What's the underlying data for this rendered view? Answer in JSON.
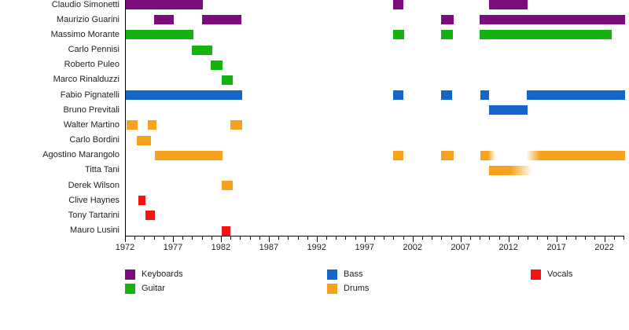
{
  "chart_data": {
    "type": "timeline",
    "description": "Band members timeline (instrument membership periods by year)",
    "x_axis": {
      "year_start": 1972,
      "year_end": 2024,
      "major_tick_interval": 5,
      "minor_tick_interval": 1,
      "year_labels": [
        "1972",
        "1977",
        "1982",
        "1987",
        "1992",
        "1997",
        "2002",
        "2007",
        "2012",
        "2017",
        "2022"
      ]
    },
    "instrument_colors": {
      "Keyboards": "#7b0c7b",
      "Guitar": "#14b30e",
      "Bass": "#1467c8",
      "Drums": "#f7a21c",
      "Vocals": "#f51210"
    },
    "legend": [
      {
        "label": "Keyboards",
        "instrument": "Keyboards",
        "col": 0,
        "row": 0
      },
      {
        "label": "Guitar",
        "instrument": "Guitar",
        "col": 0,
        "row": 1
      },
      {
        "label": "Bass",
        "instrument": "Bass",
        "col": 1,
        "row": 0
      },
      {
        "label": "Drums",
        "instrument": "Drums",
        "col": 1,
        "row": 1
      },
      {
        "label": "Vocals",
        "instrument": "Vocals",
        "col": 2,
        "row": 0
      }
    ],
    "members": [
      {
        "name": "Claudio Simonetti",
        "instrument": "Keyboards",
        "periods": [
          [
            1972,
            1980.1
          ],
          [
            2000,
            2001
          ],
          [
            2010,
            2014
          ]
        ]
      },
      {
        "name": "Maurizio Guarini",
        "instrument": "Keyboards",
        "periods": [
          [
            1975,
            1977.1
          ],
          [
            1980,
            1984.1
          ],
          [
            2005,
            2006.3
          ],
          [
            2009,
            2024.2
          ]
        ]
      },
      {
        "name": "Massimo Morante",
        "instrument": "Guitar",
        "periods": [
          [
            1972,
            1979.1
          ],
          [
            2000,
            2001.1
          ],
          [
            2005,
            2006.2
          ],
          [
            2009,
            2022.8
          ]
        ]
      },
      {
        "name": "Carlo Pennisi",
        "instrument": "Guitar",
        "periods": [
          [
            1979,
            1981.1
          ]
        ]
      },
      {
        "name": "Roberto Puleo",
        "instrument": "Guitar",
        "periods": [
          [
            1980.9,
            1982.2
          ]
        ]
      },
      {
        "name": "Marco Rinalduzzi",
        "instrument": "Guitar",
        "periods": [
          [
            1982.1,
            1983.2
          ]
        ]
      },
      {
        "name": "Fabio Pignatelli",
        "instrument": "Bass",
        "periods": [
          [
            1972,
            1984.2
          ],
          [
            2000,
            2001
          ],
          [
            2005,
            2006.1
          ],
          [
            2009.1,
            2010
          ],
          [
            2013.9,
            2024.2
          ]
        ]
      },
      {
        "name": "Bruno Previtali",
        "instrument": "Bass",
        "periods": [
          [
            2010,
            2014
          ]
        ]
      },
      {
        "name": "Walter Martino",
        "instrument": "Drums",
        "periods": [
          [
            1972.2,
            1973.3
          ],
          [
            1974.4,
            1975.3
          ],
          [
            1983,
            1984.2
          ]
        ]
      },
      {
        "name": "Carlo Bordini",
        "instrument": "Drums",
        "periods": [
          [
            1973.2,
            1974.7
          ]
        ]
      },
      {
        "name": "Agostino Marangolo",
        "instrument": "Drums",
        "periods": [
          [
            1975.1,
            1982.2
          ],
          [
            2000,
            2001
          ],
          [
            2005,
            2006.3
          ],
          [
            2009.1,
            2010.6,
            "fade-right"
          ],
          [
            2013.8,
            2024.2,
            "fade-left"
          ]
        ]
      },
      {
        "name": "Titta Tani",
        "instrument": "Drums",
        "periods": [
          [
            2010,
            2014.5,
            "fade-right"
          ]
        ]
      },
      {
        "name": "Derek Wilson",
        "instrument": "Drums",
        "periods": [
          [
            1982.1,
            1983.2
          ]
        ]
      },
      {
        "name": "Clive Haynes",
        "instrument": "Vocals",
        "periods": [
          [
            1973.4,
            1974.1
          ]
        ]
      },
      {
        "name": "Tony Tartarini",
        "instrument": "Vocals",
        "periods": [
          [
            1974.1,
            1975.1
          ]
        ]
      },
      {
        "name": "Mauro Lusini",
        "instrument": "Vocals",
        "periods": [
          [
            1982.1,
            1983
          ]
        ]
      }
    ]
  }
}
